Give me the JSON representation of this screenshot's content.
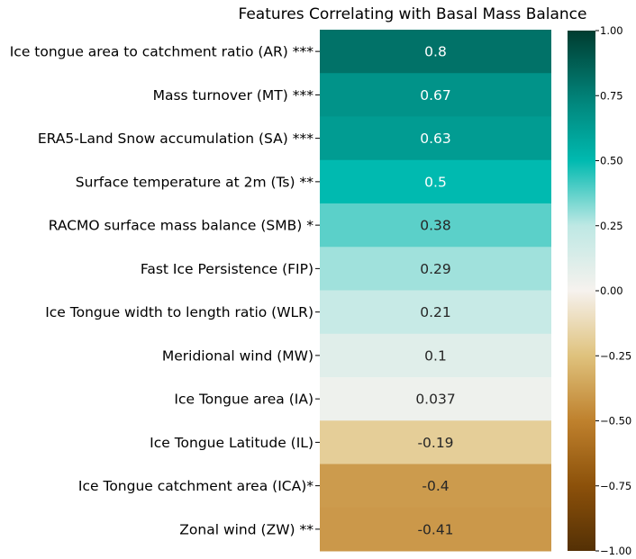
{
  "chart_data": {
    "type": "heatmap",
    "title": "Features Correlating with Basal Mass Balance",
    "rows": [
      "Ice tongue area to catchment ratio (AR) ***",
      "Mass turnover (MT) ***",
      "ERA5-Land Snow accumulation (SA) ***",
      "Surface temperature at 2m (Ts) **",
      "RACMO surface mass balance (SMB) *",
      "Fast Ice Persistence (FIP)",
      "Ice Tongue width to length ratio (WLR)",
      "Meridional wind (MW)",
      "Ice Tongue area (IA)",
      "Ice Tongue Latitude (IL)",
      "Ice Tongue catchment area (ICA)*",
      "Zonal wind (ZW) **"
    ],
    "values": [
      0.8,
      0.67,
      0.63,
      0.5,
      0.38,
      0.29,
      0.21,
      0.1,
      0.037,
      -0.19,
      -0.4,
      -0.41
    ],
    "value_labels": [
      "0.8",
      "0.67",
      "0.63",
      "0.5",
      "0.38",
      "0.29",
      "0.21",
      "0.1",
      "0.037",
      "-0.19",
      "-0.4",
      "-0.41"
    ],
    "colormap": "BrBG",
    "vmin": -1.0,
    "vmax": 1.0,
    "colorbar_ticks": [
      1.0,
      0.75,
      0.5,
      0.25,
      0.0,
      -0.25,
      -0.5,
      -0.75,
      -1.0
    ],
    "colorbar_tick_labels": [
      "1.00",
      "0.75",
      "0.50",
      "0.25",
      "0.00",
      "−0.25",
      "−0.50",
      "−0.75",
      "−1.00"
    ],
    "colorbar_placement": "right"
  }
}
